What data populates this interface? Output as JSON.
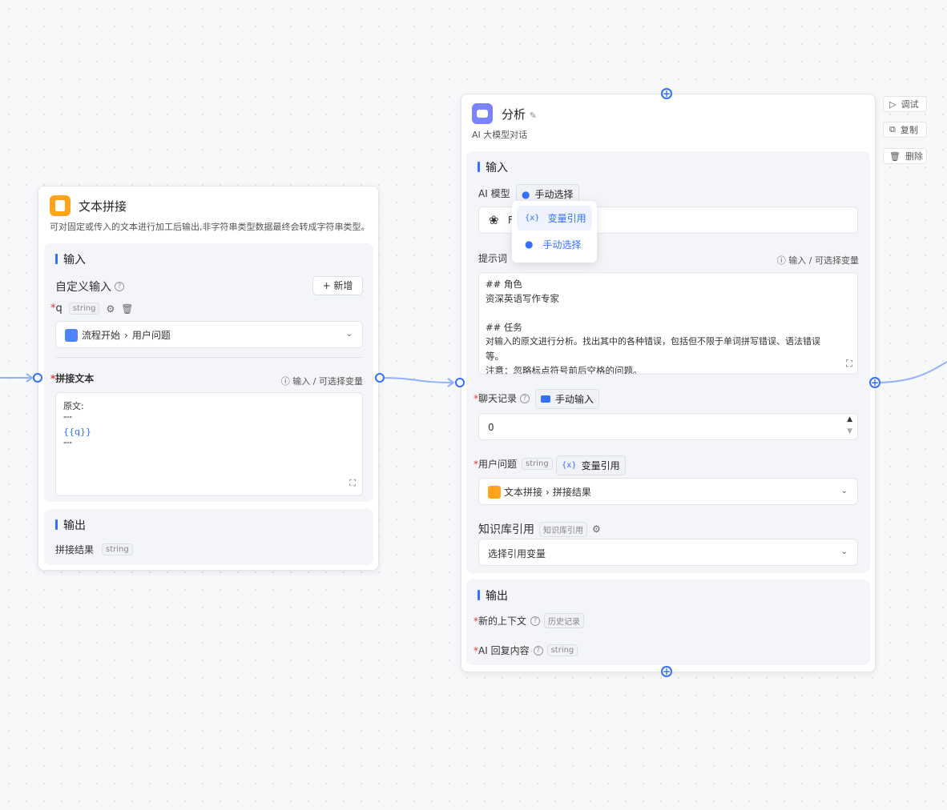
{
  "colors": {
    "accent": "#3370ff",
    "text_node_icon": "#ffa31a",
    "ai_node_icon": "#7b83ff",
    "edge": "#94b0ff"
  },
  "text_node": {
    "title": "文本拼接",
    "description": "可对固定或传入的文本进行加工后输出,非字符串类型数据最终会转成字符串类型。",
    "input_title": "输入",
    "custom_input_label": "自定义输入",
    "add_button": "+ 新增",
    "var_name": "q",
    "var_type": "string",
    "var_ref_source": "流程开始",
    "var_ref_field": "用户问题",
    "concat_label": "拼接文本",
    "hint": "输入 / 可选择变量",
    "concat_lines": [
      "原文:",
      "\"\"\"",
      "{{q}}",
      "\"\"\""
    ],
    "output_title": "输出",
    "output_name": "拼接结果",
    "output_type": "string"
  },
  "ai_node": {
    "title": "分析",
    "subtitle": "AI 大模型对话",
    "input_title": "输入",
    "model_label": "AI 模型",
    "model_mode": "手动选择",
    "model_value_partial": "F",
    "dropdown": [
      {
        "label": "变量引用",
        "icon": "variable-icon",
        "selected": true
      },
      {
        "label": "手动选择",
        "icon": "robot-icon",
        "selected": false
      }
    ],
    "prompt_label": "提示词",
    "prompt_hint": "输入 / 可选择变量",
    "prompt_lines": [
      "## 角色",
      "资深英语写作专家",
      "",
      "## 任务",
      "对输入的原文进行分析。找出其中的各种错误，包括但不限于单词拼写错误、语法错误",
      "等。",
      "注意：忽略标点符号前后空格的问题。"
    ],
    "history_label": "聊天记录",
    "history_mode": "手动输入",
    "history_value": "0",
    "question_label": "用户问题",
    "question_type": "string",
    "question_mode": "变量引用",
    "question_ref_source": "文本拼接",
    "question_ref_field": "拼接结果",
    "kb_label": "知识库引用",
    "kb_tag": "知识库引用",
    "kb_placeholder": "选择引用变量",
    "output_title": "输出",
    "out1_label": "新的上下文",
    "out1_tag": "历史记录",
    "out2_label": "AI 回复内容",
    "out2_tag": "string"
  },
  "side_actions": {
    "debug": "调试",
    "copy": "复制",
    "delete": "删除"
  }
}
